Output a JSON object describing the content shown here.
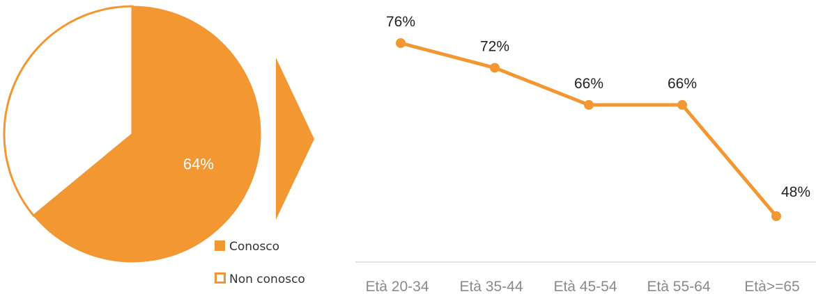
{
  "colors": {
    "accent": "#f39733",
    "axis": "#d9d9d9",
    "tick_text": "#8a8a8a",
    "label_text": "#222222"
  },
  "chart_data": [
    {
      "type": "pie",
      "slices": [
        {
          "name": "Conosco",
          "value": 64,
          "label": "64%",
          "fill": "solid"
        },
        {
          "name": "Non conosco",
          "value": 36,
          "label": "",
          "fill": "outline"
        }
      ],
      "legend": {
        "placement": "bottom-right",
        "entries": [
          "Conosco",
          "Non conosco"
        ]
      }
    },
    {
      "type": "line",
      "categories": [
        "Età 20-34",
        "Età 35-44",
        "Età 45-54",
        "Età 55-64",
        "Età>=65"
      ],
      "values": [
        76,
        72,
        66,
        66,
        48
      ],
      "labels": [
        "76%",
        "72%",
        "66%",
        "66%",
        "48%"
      ],
      "ylim": [
        40,
        80
      ],
      "grid": false
    }
  ]
}
